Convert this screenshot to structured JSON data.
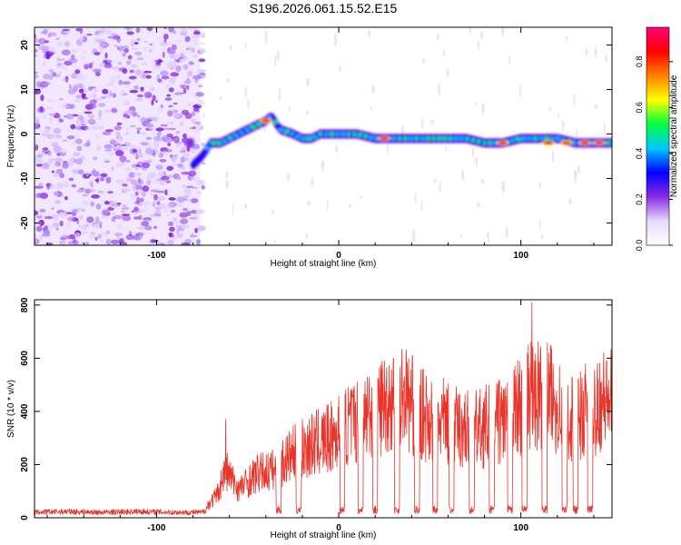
{
  "figure": {
    "title": "S196.2026.061.15.52.E15"
  },
  "chart_data": [
    {
      "type": "heatmap",
      "xlabel": "Height of straight line (km)",
      "ylabel": "Frequency (Hz)",
      "xlim": [
        -167,
        150
      ],
      "ylim": [
        -25,
        24
      ],
      "xticks": [
        -100,
        0,
        100
      ],
      "yticks": [
        -20,
        -10,
        0,
        10,
        20
      ],
      "colorbar": {
        "label": "Normalized spectral amplitude",
        "range": [
          0,
          0.95
        ],
        "ticks": [
          0.0,
          0.2,
          0.4,
          0.6,
          0.8
        ],
        "tick_labels": [
          "0.0",
          "0.2",
          "0.4",
          "0.6",
          "0.8"
        ],
        "colormap": [
          "#ffffff",
          "#e8d8ff",
          "#8a2be2",
          "#0000ff",
          "#00c8ff",
          "#00ff40",
          "#ffff00",
          "#ff8000",
          "#ff0000",
          "#ff0080"
        ]
      },
      "noise_region_x": [
        -167,
        -76
      ],
      "ridge": [
        {
          "x": -80,
          "y": -7
        },
        {
          "x": -75,
          "y": -5
        },
        {
          "x": -70,
          "y": -2
        },
        {
          "x": -65,
          "y": -2
        },
        {
          "x": -60,
          "y": -1
        },
        {
          "x": -55,
          "y": 0
        },
        {
          "x": -50,
          "y": 1
        },
        {
          "x": -45,
          "y": 2
        },
        {
          "x": -40,
          "y": 3
        },
        {
          "x": -37,
          "y": 4
        },
        {
          "x": -32,
          "y": 1
        },
        {
          "x": -25,
          "y": 0
        },
        {
          "x": -20,
          "y": -1
        },
        {
          "x": -15,
          "y": -1
        },
        {
          "x": -10,
          "y": 0
        },
        {
          "x": -5,
          "y": 0
        },
        {
          "x": 0,
          "y": 0
        },
        {
          "x": 10,
          "y": 0
        },
        {
          "x": 20,
          "y": -1
        },
        {
          "x": 30,
          "y": -1
        },
        {
          "x": 40,
          "y": -1
        },
        {
          "x": 50,
          "y": -1
        },
        {
          "x": 60,
          "y": -1
        },
        {
          "x": 70,
          "y": -1
        },
        {
          "x": 80,
          "y": -2
        },
        {
          "x": 90,
          "y": -2
        },
        {
          "x": 100,
          "y": -1
        },
        {
          "x": 110,
          "y": -1
        },
        {
          "x": 120,
          "y": -1
        },
        {
          "x": 130,
          "y": -2
        },
        {
          "x": 140,
          "y": -2
        },
        {
          "x": 150,
          "y": -2
        }
      ],
      "hotspots": [
        {
          "x": -40,
          "y": 3
        },
        {
          "x": 25,
          "y": -1
        },
        {
          "x": 90,
          "y": -2
        },
        {
          "x": 115,
          "y": -2
        },
        {
          "x": 125,
          "y": -2
        },
        {
          "x": 135,
          "y": -2
        },
        {
          "x": 143,
          "y": -2
        }
      ]
    },
    {
      "type": "line",
      "xlabel": "Height of straight line (km)",
      "ylabel": "SNR (10 * v/v)",
      "xlim": [
        -167,
        150
      ],
      "ylim": [
        0,
        820
      ],
      "xticks": [
        -100,
        0,
        100
      ],
      "yticks": [
        0,
        200,
        400,
        600,
        800
      ],
      "color": "#e8342a",
      "envelope": [
        {
          "x": -167,
          "y": 30
        },
        {
          "x": -150,
          "y": 35
        },
        {
          "x": -130,
          "y": 30
        },
        {
          "x": -110,
          "y": 35
        },
        {
          "x": -90,
          "y": 30
        },
        {
          "x": -75,
          "y": 30
        },
        {
          "x": -67,
          "y": 100
        },
        {
          "x": -62,
          "y": 220
        },
        {
          "x": -55,
          "y": 130
        },
        {
          "x": -45,
          "y": 200
        },
        {
          "x": -35,
          "y": 220
        },
        {
          "x": -25,
          "y": 290
        },
        {
          "x": -15,
          "y": 330
        },
        {
          "x": -5,
          "y": 360
        },
        {
          "x": 5,
          "y": 420
        },
        {
          "x": 15,
          "y": 470
        },
        {
          "x": 25,
          "y": 520
        },
        {
          "x": 35,
          "y": 560
        },
        {
          "x": 45,
          "y": 470
        },
        {
          "x": 55,
          "y": 450
        },
        {
          "x": 65,
          "y": 410
        },
        {
          "x": 75,
          "y": 400
        },
        {
          "x": 85,
          "y": 430
        },
        {
          "x": 95,
          "y": 470
        },
        {
          "x": 105,
          "y": 560
        },
        {
          "x": 115,
          "y": 560
        },
        {
          "x": 125,
          "y": 460
        },
        {
          "x": 135,
          "y": 480
        },
        {
          "x": 145,
          "y": 540
        },
        {
          "x": 150,
          "y": 540
        }
      ],
      "peaks": [
        {
          "x": -62,
          "y": 370
        },
        {
          "x": 30,
          "y": 600
        },
        {
          "x": 37,
          "y": 610
        },
        {
          "x": 106,
          "y": 810
        },
        {
          "x": 142,
          "y": 580
        },
        {
          "x": 147,
          "y": 590
        }
      ],
      "dropouts_x": [
        -33,
        -22,
        2,
        12,
        20,
        32,
        43,
        53,
        62,
        73,
        84,
        94,
        102,
        113,
        124,
        130,
        138
      ]
    }
  ]
}
